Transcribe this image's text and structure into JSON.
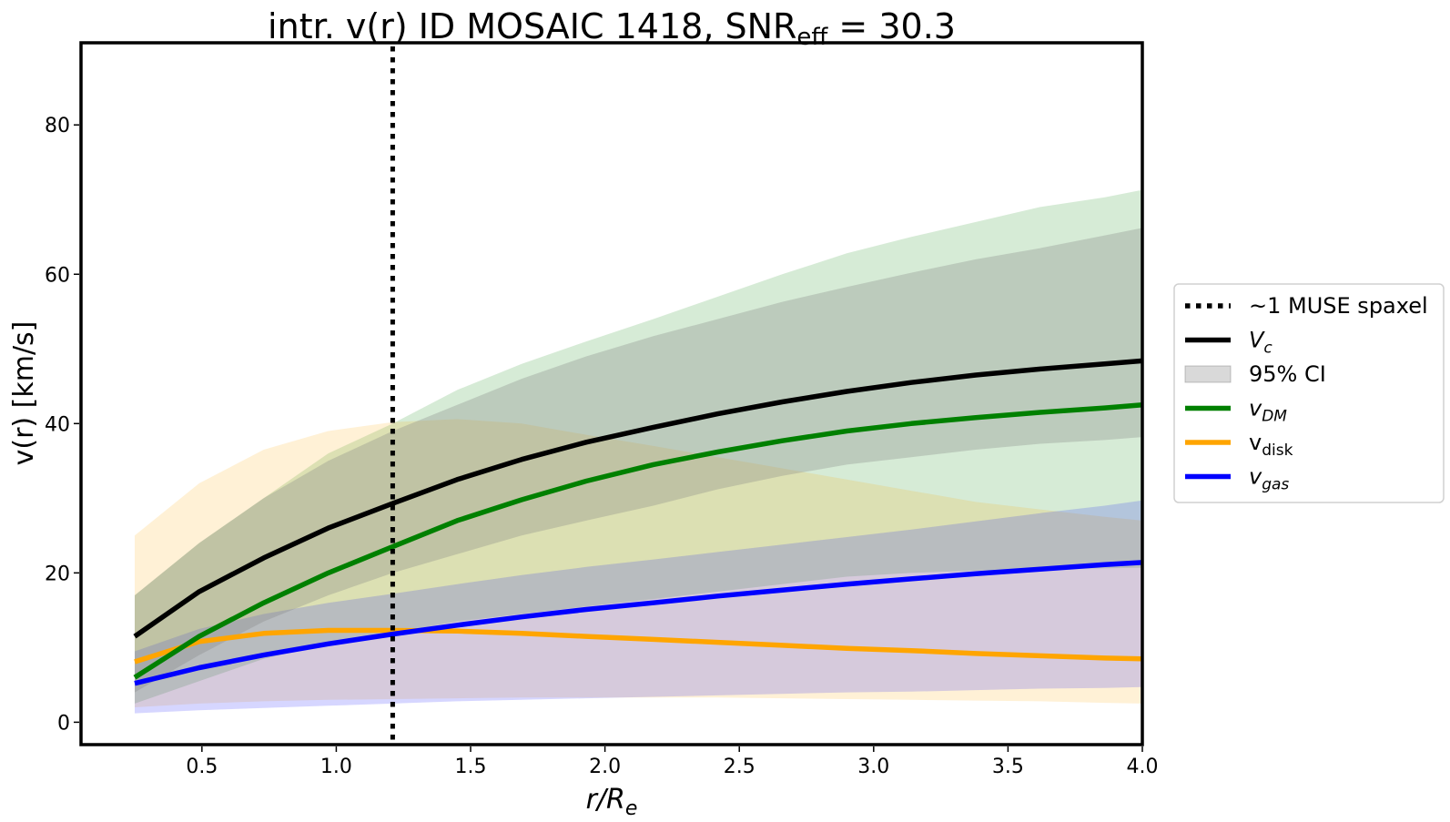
{
  "chart_data": {
    "type": "line",
    "title": {
      "main": "intr. v(r) ID MOSAIC 1418, SNR",
      "subscript": "eff",
      "suffix": " = 30.3"
    },
    "xlabel": {
      "main": "r/R",
      "subscript": "e"
    },
    "ylabel": "v(r) [km/s]",
    "xlim": [
      0.05,
      4.0
    ],
    "ylim": [
      -3,
      91
    ],
    "xticks": [
      "0.5",
      "1.0",
      "1.5",
      "2.0",
      "2.5",
      "3.0",
      "3.5",
      "4.0"
    ],
    "yticks": [
      "0",
      "20",
      "40",
      "60",
      "80"
    ],
    "vline": {
      "x": 1.21,
      "label": "~1 MUSE spaxel",
      "color": "#000000"
    },
    "x": [
      0.25,
      0.49,
      0.73,
      0.97,
      1.21,
      1.45,
      1.69,
      1.93,
      2.18,
      2.42,
      2.66,
      2.9,
      3.14,
      3.38,
      3.62,
      3.86,
      4.0
    ],
    "series": [
      {
        "key": "vdm",
        "name": "v",
        "subscript": "DM",
        "italic": true,
        "color": "#008000",
        "values": [
          6,
          11.5,
          16,
          20,
          23.5,
          27,
          29.8,
          32.3,
          34.5,
          36.2,
          37.7,
          39,
          40,
          40.8,
          41.5,
          42.1,
          42.5
        ],
        "ci_lower": [
          2.5,
          5.5,
          8.5,
          10.5,
          12,
          13.5,
          14.5,
          15.5,
          16.5,
          17.5,
          18.5,
          19.5,
          20,
          20.3,
          20.5,
          20.6,
          20.7
        ],
        "ci_upper": [
          17,
          24,
          30,
          36,
          40,
          44.5,
          48,
          51,
          54,
          57,
          60,
          62.8,
          65,
          67,
          69,
          70.3,
          71.3
        ]
      },
      {
        "key": "vdisk",
        "name": "v",
        "subscript": "disk",
        "italic": false,
        "color": "#FFA500",
        "values": [
          8.1,
          10.8,
          11.9,
          12.3,
          12.3,
          12.2,
          11.9,
          11.5,
          11.1,
          10.7,
          10.3,
          9.9,
          9.6,
          9.2,
          8.9,
          8.6,
          8.5
        ],
        "ci_lower": [
          2,
          2.5,
          2.8,
          3,
          3.1,
          3.2,
          3.3,
          3.3,
          3.3,
          3.3,
          3.2,
          3.1,
          3,
          2.9,
          2.8,
          2.6,
          2.5
        ],
        "ci_upper": [
          25,
          32,
          36.5,
          39,
          40.2,
          40.6,
          40,
          38.5,
          37,
          35.5,
          34,
          32.5,
          31,
          29.5,
          28.5,
          27.5,
          27
        ]
      },
      {
        "key": "vgas",
        "name": "v",
        "subscript": "gas",
        "italic": true,
        "color": "#0000FF",
        "values": [
          5.2,
          7.3,
          9,
          10.5,
          11.8,
          13,
          14.1,
          15.1,
          16,
          16.9,
          17.7,
          18.5,
          19.2,
          19.9,
          20.5,
          21.1,
          21.4
        ],
        "ci_lower": [
          1.2,
          1.6,
          1.9,
          2.2,
          2.5,
          2.8,
          3,
          3.2,
          3.4,
          3.6,
          3.8,
          4,
          4.1,
          4.3,
          4.5,
          4.6,
          4.7
        ],
        "ci_upper": [
          9.5,
          12.5,
          14.5,
          16,
          17.2,
          18.5,
          19.7,
          20.8,
          21.8,
          22.8,
          23.8,
          24.8,
          25.8,
          26.9,
          28,
          29,
          29.7
        ]
      },
      {
        "key": "vc",
        "name": "V",
        "subscript": "c",
        "italic": true,
        "color": "#000000",
        "values": [
          11.5,
          17.5,
          22,
          26,
          29.3,
          32.5,
          35.2,
          37.5,
          39.5,
          41.3,
          42.9,
          44.3,
          45.5,
          46.5,
          47.3,
          48,
          48.4
        ],
        "ci_lower": [
          4,
          9,
          13.5,
          17,
          20,
          22.5,
          25,
          27,
          29,
          31.2,
          33,
          34.5,
          35.5,
          36.5,
          37.3,
          37.8,
          38.2
        ],
        "ci_upper": [
          17,
          24,
          30,
          35,
          39,
          42.5,
          46,
          49,
          51.7,
          54,
          56.3,
          58.3,
          60.2,
          62,
          63.5,
          65.2,
          66.2
        ]
      }
    ],
    "legend": {
      "placement": "right",
      "items": [
        {
          "key": "spaxel",
          "type": "dotted",
          "color": "#000000",
          "text": "~1 MUSE spaxel"
        },
        {
          "key": "vc",
          "type": "line",
          "color": "#000000",
          "main": "V",
          "sub": "c",
          "italic": true
        },
        {
          "key": "ci",
          "type": "patch",
          "color": "#808080",
          "text": "95% CI"
        },
        {
          "key": "vdm",
          "type": "line",
          "color": "#008000",
          "main": "v",
          "sub": "DM",
          "italic": true
        },
        {
          "key": "vdisk",
          "type": "line",
          "color": "#FFA500",
          "main": "v",
          "sub": "disk",
          "italic": false
        },
        {
          "key": "vgas",
          "type": "line",
          "color": "#0000FF",
          "main": "v",
          "sub": "gas",
          "italic": true
        }
      ]
    }
  }
}
